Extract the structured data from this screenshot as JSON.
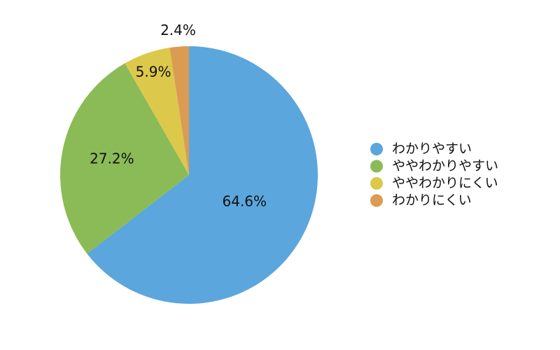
{
  "chart_data": {
    "type": "pie",
    "categories": [
      "わかりやすい",
      "ややわかりやすい",
      "ややわかりにくい",
      "わかりにくい"
    ],
    "values": [
      64.6,
      27.2,
      5.9,
      2.4
    ],
    "value_labels": [
      "64.6%",
      "27.2%",
      "5.9%",
      "2.4%"
    ],
    "colors": [
      "#5ba6dd",
      "#8bbb56",
      "#dcc84b",
      "#dc9b52"
    ],
    "legend": "right"
  }
}
